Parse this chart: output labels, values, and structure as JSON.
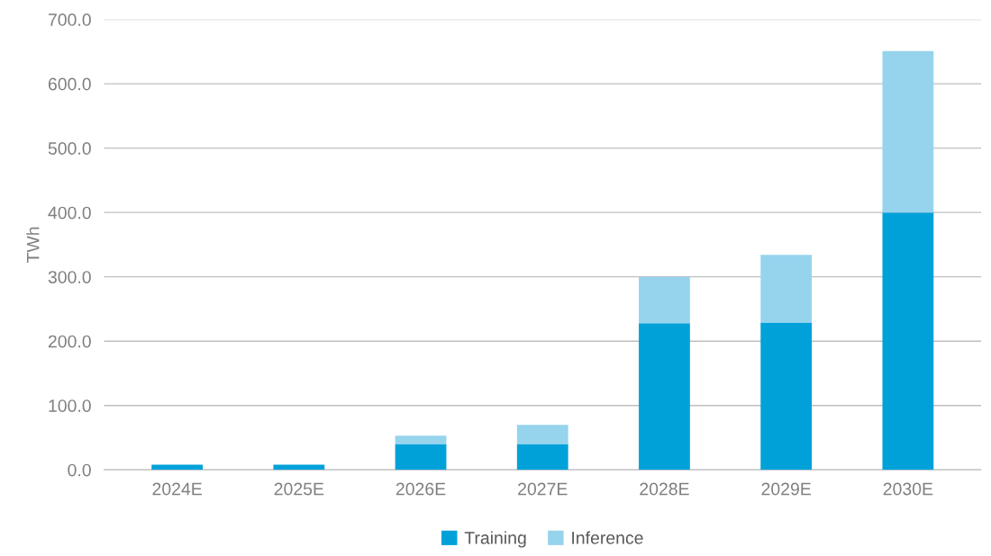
{
  "chart_data": {
    "type": "bar",
    "stacked": true,
    "ylabel": "TWh",
    "categories": [
      "2024E",
      "2025E",
      "2026E",
      "2027E",
      "2028E",
      "2029E",
      "2030E"
    ],
    "series": [
      {
        "name": "Training",
        "color": "#00a1d9",
        "values": [
          8,
          8,
          40,
          40,
          228,
          229,
          400
        ]
      },
      {
        "name": "Inference",
        "color": "#96d4ed",
        "values": [
          0,
          0,
          13,
          30,
          72,
          105,
          251
        ]
      }
    ],
    "ylim": [
      0,
      700
    ],
    "yticks": [
      {
        "value": 0,
        "label": "0.0"
      },
      {
        "value": 100,
        "label": "100.0"
      },
      {
        "value": 200,
        "label": "200.0"
      },
      {
        "value": 300,
        "label": "300.0"
      },
      {
        "value": 400,
        "label": "400.0"
      },
      {
        "value": 500,
        "label": "500.0"
      },
      {
        "value": 600,
        "label": "600.0"
      },
      {
        "value": 700,
        "label": "700.0"
      }
    ],
    "grid": "y",
    "legend": "bottom"
  }
}
